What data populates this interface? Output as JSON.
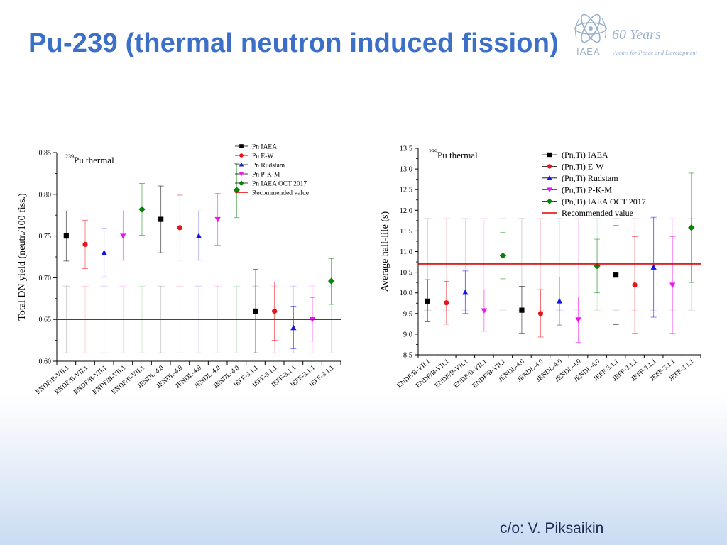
{
  "slide": {
    "title": "Pu-239 (thermal neutron induced fission)",
    "credit": "c/o: V. Piksaikin",
    "logo": {
      "years": "60 Years",
      "org": "IAEA",
      "tagline": "Atoms for Peace and Development"
    }
  },
  "colors": {
    "black": "#000000",
    "red": "#e8141c",
    "blue": "#1414e6",
    "magenta": "#f014f0",
    "green": "#0a820a",
    "recommended": "#e00000",
    "title": "#3b6fc8"
  },
  "chart_data": [
    {
      "type": "scatter",
      "annotation_sup": "239",
      "annotation": "Pu thermal",
      "ylabel": "Total DN yield (neutr./100 fiss.)",
      "xlabel": "",
      "ylim": [
        0.6,
        0.85
      ],
      "yticks": [
        0.6,
        0.65,
        0.7,
        0.75,
        0.8,
        0.85
      ],
      "ytick_labels": [
        "0.60",
        "0.65",
        "0.70",
        "0.75",
        "0.80",
        "0.85"
      ],
      "categories": [
        "ENDF/B-VII.1",
        "ENDF/B-VII.1",
        "ENDF/B-VII.1",
        "ENDF/B-VII.1",
        "ENDF/B-VII.1",
        "JENDL-4.0",
        "JENDL-4.0",
        "JENDL-4.0",
        "JENDL-4.0",
        "JENDL-4.0",
        "JEFF-3.1.1",
        "JEFF-3.1.1",
        "JEFF-3.1.1",
        "JEFF-3.1.1",
        "JEFF-3.1.1"
      ],
      "recommended_value": 0.65,
      "legend_position": "top-right",
      "series": [
        {
          "name": "Pn IAEA",
          "marker": "square",
          "color": "#000000",
          "points": [
            {
              "x": 0,
              "y": 0.75,
              "yerr_lo": 0.72,
              "yerr_hi": 0.78
            },
            {
              "x": 5,
              "y": 0.77,
              "yerr_lo": 0.73,
              "yerr_hi": 0.81
            },
            {
              "x": 10,
              "y": 0.66,
              "yerr_lo": 0.61,
              "yerr_hi": 0.71
            }
          ],
          "lib_band": [
            0.61,
            0.69
          ]
        },
        {
          "name": "Pn E-W",
          "marker": "circle",
          "color": "#e8141c",
          "points": [
            {
              "x": 1,
              "y": 0.74,
              "yerr_lo": 0.711,
              "yerr_hi": 0.769
            },
            {
              "x": 6,
              "y": 0.76,
              "yerr_lo": 0.721,
              "yerr_hi": 0.799
            },
            {
              "x": 11,
              "y": 0.66,
              "yerr_lo": 0.625,
              "yerr_hi": 0.695
            }
          ],
          "lib_band": [
            0.61,
            0.69
          ]
        },
        {
          "name": "Pn Rudstam",
          "marker": "triangle-up",
          "color": "#1414e6",
          "points": [
            {
              "x": 2,
              "y": 0.73,
              "yerr_lo": 0.701,
              "yerr_hi": 0.759
            },
            {
              "x": 7,
              "y": 0.75,
              "yerr_lo": 0.721,
              "yerr_hi": 0.78
            },
            {
              "x": 12,
              "y": 0.64,
              "yerr_lo": 0.615,
              "yerr_hi": 0.666
            }
          ],
          "lib_band": [
            0.61,
            0.69
          ]
        },
        {
          "name": "Pn P-K-M",
          "marker": "triangle-down",
          "color": "#f014f0",
          "points": [
            {
              "x": 3,
              "y": 0.75,
              "yerr_lo": 0.721,
              "yerr_hi": 0.78
            },
            {
              "x": 8,
              "y": 0.77,
              "yerr_lo": 0.739,
              "yerr_hi": 0.801
            },
            {
              "x": 13,
              "y": 0.65,
              "yerr_lo": 0.624,
              "yerr_hi": 0.676
            }
          ],
          "lib_band": [
            0.61,
            0.69
          ]
        },
        {
          "name": "Pn IAEA OCT 2017",
          "marker": "diamond",
          "color": "#0a820a",
          "points": [
            {
              "x": 4,
              "y": 0.782,
              "yerr_lo": 0.751,
              "yerr_hi": 0.813
            },
            {
              "x": 9,
              "y": 0.805,
              "yerr_lo": 0.772,
              "yerr_hi": 0.837
            },
            {
              "x": 14,
              "y": 0.696,
              "yerr_lo": 0.668,
              "yerr_hi": 0.723
            }
          ],
          "lib_band": [
            0.61,
            0.69
          ]
        }
      ],
      "recommended_label": "Recommended value"
    },
    {
      "type": "scatter",
      "annotation_sup": "239",
      "annotation": "Pu thermal",
      "ylabel": "Average half-life (s)",
      "xlabel": "",
      "ylim": [
        8.5,
        13.5
      ],
      "yticks": [
        8.5,
        9.0,
        9.5,
        10.0,
        10.5,
        11.0,
        11.5,
        12.0,
        12.5,
        13.0,
        13.5
      ],
      "ytick_labels": [
        "8.5",
        "9.0",
        "9.5",
        "10.0",
        "10.5",
        "11.0",
        "11.5",
        "12.0",
        "12.5",
        "13.0",
        "13.5"
      ],
      "categories": [
        "ENDF/B-VII.1",
        "ENDF/B-VII.1",
        "ENDF/B-VII.1",
        "ENDF/B-VII.1",
        "ENDF/B-VII.1",
        "JENDL-4.0",
        "JENDL-4.0",
        "JENDL-4.0",
        "JENDL-4.0",
        "JENDL-4.0",
        "JEFF-3.1.1",
        "JEFF-3.1.1",
        "JEFF-3.1.1",
        "JEFF-3.1.1",
        "JEFF-3.1.1"
      ],
      "recommended_value": 10.7,
      "legend_position": "top-right",
      "series": [
        {
          "name": "(Pn,Ti) IAEA",
          "marker": "square",
          "color": "#000000",
          "points": [
            {
              "x": 0,
              "y": 9.8,
              "yerr_lo": 9.3,
              "yerr_hi": 10.32
            },
            {
              "x": 5,
              "y": 9.58,
              "yerr_lo": 9.02,
              "yerr_hi": 10.16
            },
            {
              "x": 10,
              "y": 10.43,
              "yerr_lo": 9.23,
              "yerr_hi": 11.63
            }
          ],
          "lib_band": [
            9.58,
            11.8
          ]
        },
        {
          "name": "(Pn,Ti) E-W",
          "marker": "circle",
          "color": "#e8141c",
          "points": [
            {
              "x": 1,
              "y": 9.76,
              "yerr_lo": 9.24,
              "yerr_hi": 10.28
            },
            {
              "x": 6,
              "y": 9.5,
              "yerr_lo": 8.93,
              "yerr_hi": 10.08
            },
            {
              "x": 11,
              "y": 10.19,
              "yerr_lo": 9.02,
              "yerr_hi": 11.36
            }
          ],
          "lib_band": [
            9.58,
            11.8
          ]
        },
        {
          "name": "(Pn,Ti) Rudstam",
          "marker": "triangle-up",
          "color": "#1414e6",
          "points": [
            {
              "x": 2,
              "y": 10.01,
              "yerr_lo": 9.5,
              "yerr_hi": 10.53
            },
            {
              "x": 7,
              "y": 9.8,
              "yerr_lo": 9.22,
              "yerr_hi": 10.38
            },
            {
              "x": 12,
              "y": 10.62,
              "yerr_lo": 9.41,
              "yerr_hi": 11.83
            }
          ],
          "lib_band": [
            9.58,
            11.8
          ]
        },
        {
          "name": "(Pn,Ti) P-K-M",
          "marker": "triangle-down",
          "color": "#f014f0",
          "points": [
            {
              "x": 3,
              "y": 9.57,
              "yerr_lo": 9.07,
              "yerr_hi": 10.07
            },
            {
              "x": 8,
              "y": 9.35,
              "yerr_lo": 8.8,
              "yerr_hi": 9.9
            },
            {
              "x": 13,
              "y": 10.19,
              "yerr_lo": 9.02,
              "yerr_hi": 11.36
            }
          ],
          "lib_band": [
            9.58,
            11.8
          ]
        },
        {
          "name": "(Pn,Ti) IAEA OCT 2017",
          "marker": "diamond",
          "color": "#0a820a",
          "points": [
            {
              "x": 4,
              "y": 10.9,
              "yerr_lo": 10.34,
              "yerr_hi": 11.46
            },
            {
              "x": 9,
              "y": 10.65,
              "yerr_lo": 10.0,
              "yerr_hi": 11.3
            },
            {
              "x": 14,
              "y": 11.58,
              "yerr_lo": 10.25,
              "yerr_hi": 12.9
            }
          ],
          "lib_band": [
            9.58,
            11.8
          ]
        }
      ],
      "recommended_label": "Recommended value"
    }
  ]
}
